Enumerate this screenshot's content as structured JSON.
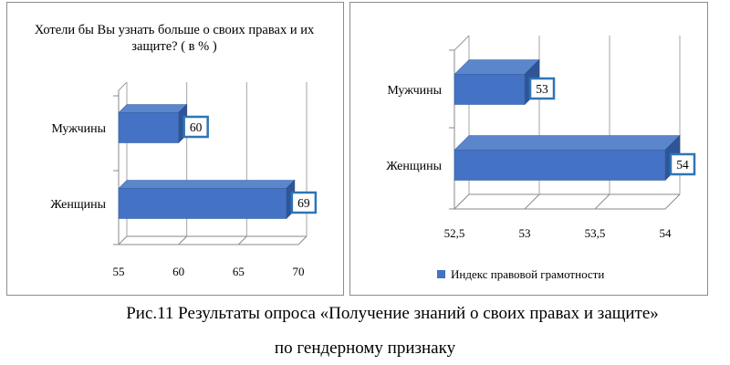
{
  "chart_data": [
    {
      "type": "bar",
      "orientation": "horizontal",
      "title": "Хотели бы Вы узнать больше о своих правах и их защите? ( в % )",
      "categories": [
        "Мужчины",
        "Женщины"
      ],
      "values": [
        60,
        69
      ],
      "data_labels": [
        "60",
        "69"
      ],
      "xlim": [
        55,
        70
      ],
      "x_ticks": [
        "55",
        "60",
        "65",
        "70"
      ],
      "grid": true,
      "style": "3d",
      "color": "#4472c4"
    },
    {
      "type": "bar",
      "orientation": "horizontal",
      "categories": [
        "Мужчины",
        "Женщины"
      ],
      "values": [
        53,
        54
      ],
      "data_labels": [
        "53",
        "54"
      ],
      "xlim": [
        52.5,
        54
      ],
      "x_ticks": [
        "52,5",
        "53",
        "53,5",
        "54"
      ],
      "grid": true,
      "style": "3d",
      "color": "#4472c4",
      "legend": {
        "position": "bottom",
        "entries": [
          "Индекс правовой грамотности"
        ]
      }
    }
  ],
  "caption": {
    "line1": "Рис.11 Результаты опроса «Получение знаний о своих правах и защите»",
    "line2": "по гендерному признаку"
  }
}
